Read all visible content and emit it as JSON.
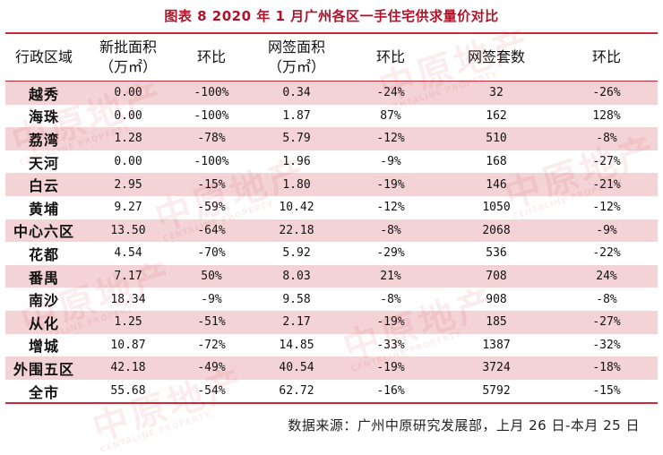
{
  "title": "图表 8    2020 年 1 月广州各区一手住宅供求量价对比",
  "headers": {
    "district": "行政区域",
    "new_area_line1": "新批面积",
    "new_area_line2": "（万㎡）",
    "yoy1": "环比",
    "signed_area_line1": "网签面积",
    "signed_area_line2": "（万㎡）",
    "yoy2": "环比",
    "signed_units": "网签套数",
    "yoy3": "环比"
  },
  "rows": [
    {
      "district": "越秀",
      "new_area": "0.00",
      "c1": "-100%",
      "signed_area": "0.34",
      "c2": "-24%",
      "units": "32",
      "c3": "-26%"
    },
    {
      "district": "海珠",
      "new_area": "0.00",
      "c1": "-100%",
      "signed_area": "1.87",
      "c2": "87%",
      "units": "162",
      "c3": "128%"
    },
    {
      "district": "荔湾",
      "new_area": "1.28",
      "c1": "-78%",
      "signed_area": "5.79",
      "c2": "-12%",
      "units": "510",
      "c3": "-8%"
    },
    {
      "district": "天河",
      "new_area": "0.00",
      "c1": "-100%",
      "signed_area": "1.96",
      "c2": "-9%",
      "units": "168",
      "c3": "-27%"
    },
    {
      "district": "白云",
      "new_area": "2.95",
      "c1": "-15%",
      "signed_area": "1.80",
      "c2": "-19%",
      "units": "146",
      "c3": "-21%"
    },
    {
      "district": "黄埔",
      "new_area": "9.27",
      "c1": "-59%",
      "signed_area": "10.42",
      "c2": "-12%",
      "units": "1050",
      "c3": "-12%"
    },
    {
      "district": "中心六区",
      "new_area": "13.50",
      "c1": "-64%",
      "signed_area": "22.18",
      "c2": "-8%",
      "units": "2068",
      "c3": "-9%"
    },
    {
      "district": "花都",
      "new_area": "4.54",
      "c1": "-70%",
      "signed_area": "5.92",
      "c2": "-29%",
      "units": "536",
      "c3": "-22%"
    },
    {
      "district": "番禺",
      "new_area": "7.17",
      "c1": "50%",
      "signed_area": "8.03",
      "c2": "21%",
      "units": "708",
      "c3": "24%"
    },
    {
      "district": "南沙",
      "new_area": "18.34",
      "c1": "-9%",
      "signed_area": "9.58",
      "c2": "-8%",
      "units": "908",
      "c3": "-8%"
    },
    {
      "district": "从化",
      "new_area": "1.25",
      "c1": "-51%",
      "signed_area": "2.17",
      "c2": "-19%",
      "units": "185",
      "c3": "-27%"
    },
    {
      "district": "增城",
      "new_area": "10.87",
      "c1": "-72%",
      "signed_area": "14.85",
      "c2": "-33%",
      "units": "1387",
      "c3": "-32%"
    },
    {
      "district": "外围五区",
      "new_area": "42.18",
      "c1": "-49%",
      "signed_area": "40.54",
      "c2": "-19%",
      "units": "3724",
      "c3": "-18%"
    },
    {
      "district": "全市",
      "new_area": "55.68",
      "c1": "-54%",
      "signed_area": "62.72",
      "c2": "-16%",
      "units": "5792",
      "c3": "-15%"
    }
  ],
  "source": "数据来源：广州中原研究发展部，上月 26 日-本月 25 日",
  "watermark": {
    "text": "中原地产",
    "sub": "CENTALINE PROPERTY"
  },
  "colors": {
    "accent": "#c72b3b",
    "row_shade": "#f3d3d5",
    "title": "#b1122a"
  }
}
